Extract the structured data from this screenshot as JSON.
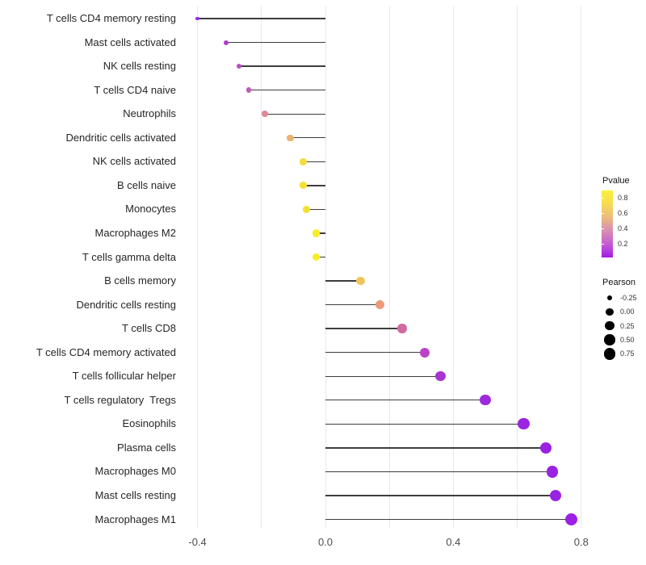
{
  "chart_data": {
    "type": "lollipop",
    "orientation": "horizontal",
    "xlabel": "",
    "ylabel": "",
    "xlim": [
      -0.44,
      0.85
    ],
    "grid": "vertical-light",
    "x_axis": {
      "ticks": [
        {
          "value": -0.4,
          "label": "-0.4"
        },
        {
          "value": 0.0,
          "label": "0.0"
        },
        {
          "value": 0.4,
          "label": "0.4"
        },
        {
          "value": 0.8,
          "label": "0.8"
        }
      ],
      "gridline_values": [
        -0.4,
        -0.2,
        0.0,
        0.2,
        0.4,
        0.6,
        0.8
      ]
    },
    "points": [
      {
        "label": "T cells CD4 memory resting",
        "pearson": -0.4,
        "color": "#992ddd"
      },
      {
        "label": "Mast cells activated",
        "pearson": -0.31,
        "color": "#ad3fc6"
      },
      {
        "label": "NK cells resting",
        "pearson": -0.27,
        "color": "#ba4dc3"
      },
      {
        "label": "T cells CD4 naive",
        "pearson": -0.24,
        "color": "#c25ab9"
      },
      {
        "label": "Neutrophils",
        "pearson": -0.19,
        "color": "#dd8a94"
      },
      {
        "label": "Dendritic cells activated",
        "pearson": -0.11,
        "color": "#ebb26d"
      },
      {
        "label": "NK cells activated",
        "pearson": -0.07,
        "color": "#f3dc3c"
      },
      {
        "label": "B cells naive",
        "pearson": -0.07,
        "color": "#f4e033"
      },
      {
        "label": "Monocytes",
        "pearson": -0.06,
        "color": "#f4e033"
      },
      {
        "label": "Macrophages M2",
        "pearson": -0.03,
        "color": "#f8ec29"
      },
      {
        "label": "T cells gamma delta",
        "pearson": -0.03,
        "color": "#f8ec29"
      },
      {
        "label": "B cells memory",
        "pearson": 0.11,
        "color": "#efc45b"
      },
      {
        "label": "Dendritic cells resting",
        "pearson": 0.17,
        "color": "#e99b7a"
      },
      {
        "label": "T cells CD8",
        "pearson": 0.24,
        "color": "#d26aa2"
      },
      {
        "label": "T cells CD4 memory activated",
        "pearson": 0.31,
        "color": "#bb42c6"
      },
      {
        "label": "T cells follicular helper",
        "pearson": 0.36,
        "color": "#aa34d2"
      },
      {
        "label": "T cells regulatory  Tregs",
        "pearson": 0.5,
        "color": "#9d2add"
      },
      {
        "label": "Eosinophils",
        "pearson": 0.62,
        "color": "#9a25e0"
      },
      {
        "label": "Plasma cells",
        "pearson": 0.69,
        "color": "#9a22e2"
      },
      {
        "label": "Macrophages M0",
        "pearson": 0.71,
        "color": "#9a22e2"
      },
      {
        "label": "Mast cells resting",
        "pearson": 0.72,
        "color": "#9a22e2"
      },
      {
        "label": "Macrophages M1",
        "pearson": 0.77,
        "color": "#9e1fe6"
      }
    ],
    "legend_pvalue": {
      "title": "Pvalue",
      "tick_labels": [
        "0.8",
        "0.6",
        "0.4",
        "0.2"
      ],
      "gradient_bottom_to_top": [
        "#a21ae8",
        "#c45cd2",
        "#d98eb1",
        "#ecbb7e",
        "#f6dc52",
        "#f9f03a"
      ]
    },
    "legend_pearson": {
      "title": "Pearson",
      "entries": [
        {
          "label": "-0.25",
          "value": -0.25
        },
        {
          "label": "0.00",
          "value": 0.0
        },
        {
          "label": "0.25",
          "value": 0.25
        },
        {
          "label": "0.50",
          "value": 0.5
        },
        {
          "label": "0.75",
          "value": 0.75
        }
      ]
    }
  }
}
